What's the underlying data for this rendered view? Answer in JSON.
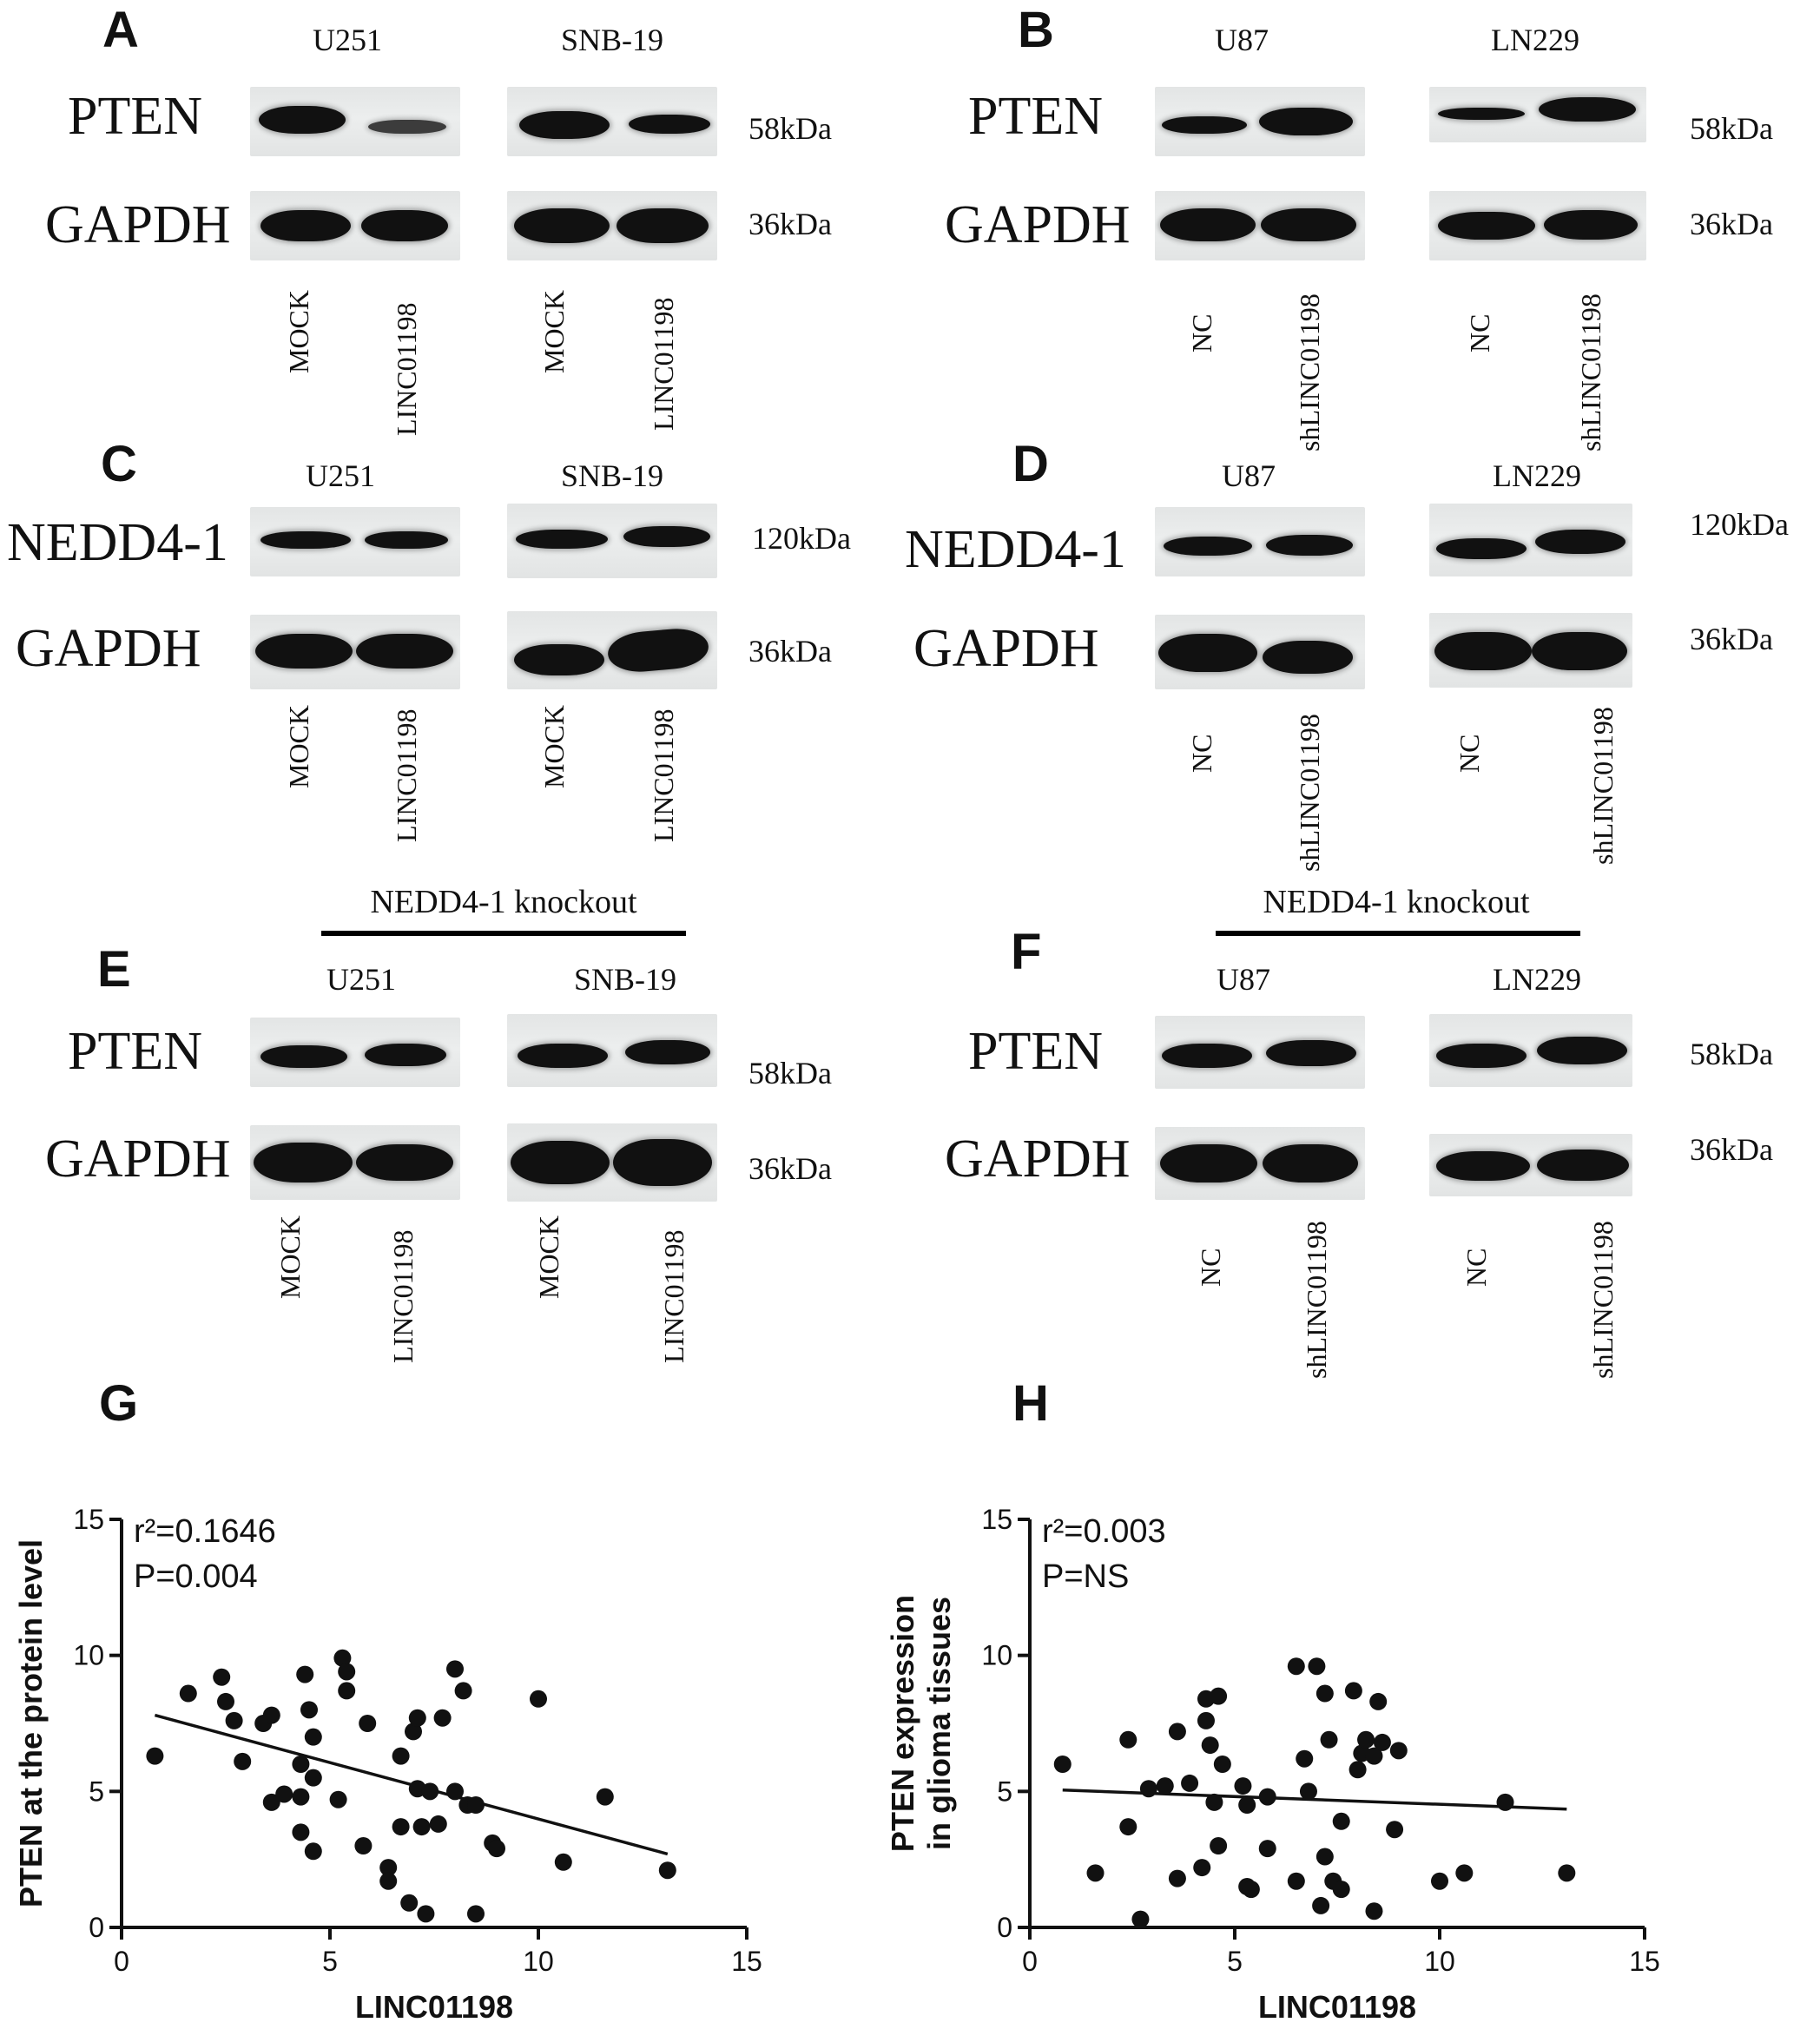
{
  "panels": {
    "A": {
      "letter": "A",
      "cells": [
        "U251",
        "SNB-19"
      ],
      "proteins": [
        "PTEN",
        "GAPDH"
      ],
      "kda": [
        "58kDa",
        "36kDa"
      ],
      "lanes": [
        "MOCK",
        "LINC01198",
        "MOCK",
        "LINC01198"
      ]
    },
    "B": {
      "letter": "B",
      "cells": [
        "U87",
        "LN229"
      ],
      "proteins": [
        "PTEN",
        "GAPDH"
      ],
      "kda": [
        "58kDa",
        "36kDa"
      ],
      "lanes": [
        "NC",
        "shLINC01198",
        "NC",
        "shLINC01198"
      ]
    },
    "C": {
      "letter": "C",
      "cells": [
        "U251",
        "SNB-19"
      ],
      "proteins": [
        "NEDD4-1",
        "GAPDH"
      ],
      "kda": [
        "120kDa",
        "36kDa"
      ],
      "lanes": [
        "MOCK",
        "LINC01198",
        "MOCK",
        "LINC01198"
      ]
    },
    "D": {
      "letter": "D",
      "cells": [
        "U87",
        "LN229"
      ],
      "proteins": [
        "NEDD4-1",
        "GAPDH"
      ],
      "kda": [
        "120kDa",
        "36kDa"
      ],
      "lanes": [
        "NC",
        "shLINC01198",
        "NC",
        "shLINC01198"
      ]
    },
    "E": {
      "letter": "E",
      "knockout": "NEDD4-1 knockout",
      "cells": [
        "U251",
        "SNB-19"
      ],
      "proteins": [
        "PTEN",
        "GAPDH"
      ],
      "kda": [
        "58kDa",
        "36kDa"
      ],
      "lanes": [
        "MOCK",
        "LINC01198",
        "MOCK",
        "LINC01198"
      ]
    },
    "F": {
      "letter": "F",
      "knockout": "NEDD4-1 knockout",
      "cells": [
        "U87",
        "LN229"
      ],
      "proteins": [
        "PTEN",
        "GAPDH"
      ],
      "kda": [
        "58kDa",
        "36kDa"
      ],
      "lanes": [
        "NC",
        "shLINC01198",
        "NC",
        "shLINC01198"
      ]
    },
    "G": {
      "letter": "G"
    },
    "H": {
      "letter": "H"
    }
  },
  "chart_data": [
    {
      "type": "scatter",
      "panel": "G",
      "xlabel": "LINC01198",
      "ylabel": "PTEN at the protein level",
      "stat_r2": "r²=0.1646",
      "stat_p": "P=0.004",
      "xlim": [
        0,
        15
      ],
      "ylim": [
        0,
        15
      ],
      "xticks": [
        0,
        5,
        10,
        15
      ],
      "yticks": [
        0,
        5,
        10,
        15
      ],
      "regression": {
        "x": [
          0.8,
          13.1
        ],
        "y": [
          7.8,
          2.7
        ]
      },
      "points": [
        {
          "x": 0.8,
          "y": 6.3
        },
        {
          "x": 1.6,
          "y": 8.6
        },
        {
          "x": 2.4,
          "y": 9.2
        },
        {
          "x": 2.5,
          "y": 8.3
        },
        {
          "x": 2.7,
          "y": 7.6
        },
        {
          "x": 2.9,
          "y": 6.1
        },
        {
          "x": 3.4,
          "y": 7.5
        },
        {
          "x": 3.6,
          "y": 7.8
        },
        {
          "x": 3.6,
          "y": 4.6
        },
        {
          "x": 3.9,
          "y": 4.9
        },
        {
          "x": 4.3,
          "y": 4.8
        },
        {
          "x": 4.3,
          "y": 6.0
        },
        {
          "x": 4.3,
          "y": 3.5
        },
        {
          "x": 4.4,
          "y": 9.3
        },
        {
          "x": 4.5,
          "y": 8.0
        },
        {
          "x": 4.6,
          "y": 7.0
        },
        {
          "x": 4.6,
          "y": 5.5
        },
        {
          "x": 4.6,
          "y": 2.8
        },
        {
          "x": 5.2,
          "y": 4.7
        },
        {
          "x": 5.3,
          "y": 9.9
        },
        {
          "x": 5.4,
          "y": 9.4
        },
        {
          "x": 5.4,
          "y": 8.7
        },
        {
          "x": 5.8,
          "y": 3.0
        },
        {
          "x": 5.9,
          "y": 7.5
        },
        {
          "x": 6.4,
          "y": 2.2
        },
        {
          "x": 6.4,
          "y": 1.7
        },
        {
          "x": 6.7,
          "y": 6.3
        },
        {
          "x": 6.7,
          "y": 3.7
        },
        {
          "x": 6.9,
          "y": 0.9
        },
        {
          "x": 7.0,
          "y": 7.2
        },
        {
          "x": 7.1,
          "y": 7.7
        },
        {
          "x": 7.1,
          "y": 5.1
        },
        {
          "x": 7.2,
          "y": 3.7
        },
        {
          "x": 7.3,
          "y": 0.5
        },
        {
          "x": 7.4,
          "y": 5.0
        },
        {
          "x": 7.6,
          "y": 3.8
        },
        {
          "x": 7.7,
          "y": 7.7
        },
        {
          "x": 8.0,
          "y": 9.5
        },
        {
          "x": 8.0,
          "y": 5.0
        },
        {
          "x": 8.2,
          "y": 8.7
        },
        {
          "x": 8.3,
          "y": 4.5
        },
        {
          "x": 8.5,
          "y": 4.5
        },
        {
          "x": 8.5,
          "y": 0.5
        },
        {
          "x": 8.9,
          "y": 3.1
        },
        {
          "x": 9.0,
          "y": 2.9
        },
        {
          "x": 10.0,
          "y": 8.4
        },
        {
          "x": 10.6,
          "y": 2.4
        },
        {
          "x": 11.6,
          "y": 4.8
        },
        {
          "x": 13.1,
          "y": 2.1
        }
      ]
    },
    {
      "type": "scatter",
      "panel": "H",
      "xlabel": "LINC01198",
      "ylabel_lines": [
        "PTEN  expression",
        "in glioma tissues"
      ],
      "stat_r2": "r²=0.003",
      "stat_p": "P=NS",
      "xlim": [
        0,
        15
      ],
      "ylim": [
        0,
        15
      ],
      "xticks": [
        0,
        5,
        10,
        15
      ],
      "yticks": [
        0,
        5,
        10,
        15
      ],
      "regression": {
        "x": [
          0.8,
          13.1
        ],
        "y": [
          5.05,
          4.35
        ]
      },
      "points": [
        {
          "x": 0.8,
          "y": 6.0
        },
        {
          "x": 1.6,
          "y": 2.0
        },
        {
          "x": 2.4,
          "y": 6.9
        },
        {
          "x": 2.4,
          "y": 3.7
        },
        {
          "x": 2.7,
          "y": 0.3
        },
        {
          "x": 2.9,
          "y": 5.1
        },
        {
          "x": 3.3,
          "y": 5.2
        },
        {
          "x": 3.6,
          "y": 7.2
        },
        {
          "x": 3.6,
          "y": 1.8
        },
        {
          "x": 3.9,
          "y": 5.3
        },
        {
          "x": 4.2,
          "y": 2.2
        },
        {
          "x": 4.3,
          "y": 8.4
        },
        {
          "x": 4.3,
          "y": 7.6
        },
        {
          "x": 4.4,
          "y": 6.7
        },
        {
          "x": 4.5,
          "y": 4.6
        },
        {
          "x": 4.6,
          "y": 8.5
        },
        {
          "x": 4.6,
          "y": 3.0
        },
        {
          "x": 4.7,
          "y": 6.0
        },
        {
          "x": 5.2,
          "y": 5.2
        },
        {
          "x": 5.3,
          "y": 1.5
        },
        {
          "x": 5.3,
          "y": 4.5
        },
        {
          "x": 5.4,
          "y": 1.4
        },
        {
          "x": 5.8,
          "y": 4.8
        },
        {
          "x": 5.8,
          "y": 2.9
        },
        {
          "x": 6.5,
          "y": 9.6
        },
        {
          "x": 6.5,
          "y": 1.7
        },
        {
          "x": 6.7,
          "y": 6.2
        },
        {
          "x": 6.8,
          "y": 5.0
        },
        {
          "x": 7.0,
          "y": 9.6
        },
        {
          "x": 7.1,
          "y": 0.8
        },
        {
          "x": 7.2,
          "y": 8.6
        },
        {
          "x": 7.2,
          "y": 2.6
        },
        {
          "x": 7.3,
          "y": 6.9
        },
        {
          "x": 7.4,
          "y": 1.7
        },
        {
          "x": 7.6,
          "y": 3.9
        },
        {
          "x": 7.6,
          "y": 1.4
        },
        {
          "x": 7.9,
          "y": 8.7
        },
        {
          "x": 8.0,
          "y": 5.8
        },
        {
          "x": 8.1,
          "y": 6.4
        },
        {
          "x": 8.2,
          "y": 6.9
        },
        {
          "x": 8.4,
          "y": 0.6
        },
        {
          "x": 8.4,
          "y": 6.3
        },
        {
          "x": 8.5,
          "y": 8.3
        },
        {
          "x": 8.6,
          "y": 6.8
        },
        {
          "x": 8.9,
          "y": 3.6
        },
        {
          "x": 9.0,
          "y": 6.5
        },
        {
          "x": 10.0,
          "y": 1.7
        },
        {
          "x": 10.6,
          "y": 2.0
        },
        {
          "x": 11.6,
          "y": 4.6
        },
        {
          "x": 13.1,
          "y": 2.0
        }
      ]
    }
  ]
}
